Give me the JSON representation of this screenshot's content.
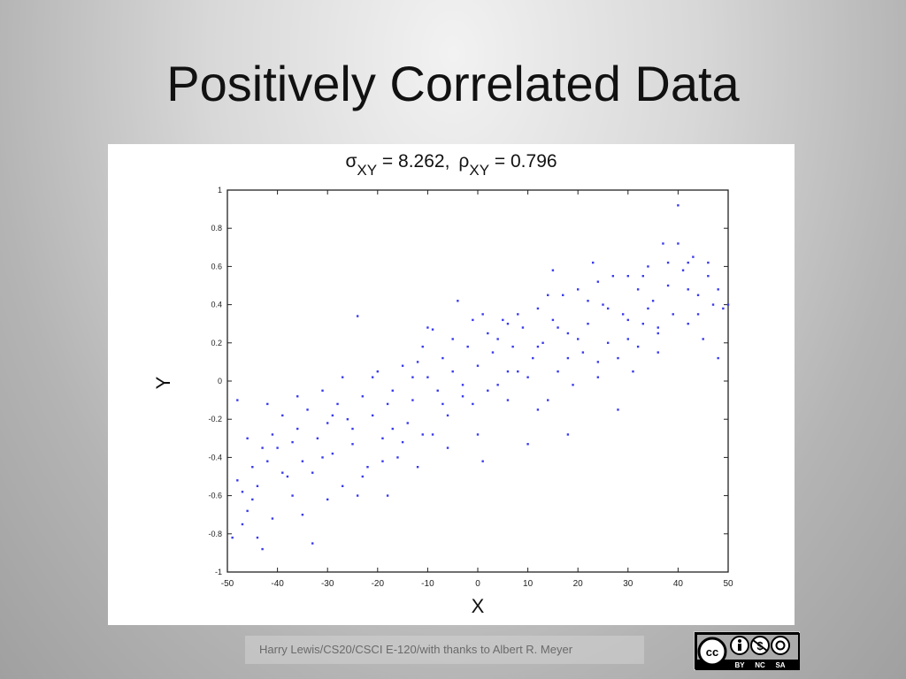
{
  "slide": {
    "title": "Positively Correlated Data",
    "footer": "Harry Lewis/CS20/CSCI E-120/with thanks to Albert R. Meyer"
  },
  "license_badge": {
    "icons": [
      "cc-icon",
      "by-icon",
      "nc-icon",
      "sa-icon"
    ],
    "labels": [
      "BY",
      "NC",
      "SA"
    ]
  },
  "chart_data": {
    "type": "scatter",
    "title_parts": {
      "sigma": "σ",
      "sigma_sub": "XY",
      "sigma_val": " = 8.262,",
      "rho": "ρ",
      "rho_sub": "XY",
      "rho_val": " = 0.796"
    },
    "xlabel": "X",
    "ylabel": "Y",
    "xlim": [
      -50,
      50
    ],
    "ylim": [
      -1,
      1
    ],
    "xticks": [
      -50,
      -40,
      -30,
      -20,
      -10,
      0,
      10,
      20,
      30,
      40,
      50
    ],
    "yticks": [
      -1,
      -0.8,
      -0.6,
      -0.4,
      -0.2,
      0,
      0.2,
      0.4,
      0.6,
      0.8,
      1
    ],
    "ytick_labels": [
      "-1",
      "-0.8",
      "-0.6",
      "-0.4",
      "-0.2",
      "0",
      "0.2",
      "0.4",
      "0.6",
      "0.8",
      "1"
    ],
    "grid": false,
    "marker_color": "#3a3af0",
    "points": [
      [
        -48,
        -0.52
      ],
      [
        -47,
        -0.58
      ],
      [
        -46,
        -0.68
      ],
      [
        -45,
        -0.45
      ],
      [
        -44,
        -0.82
      ],
      [
        -43,
        -0.88
      ],
      [
        -46,
        -0.3
      ],
      [
        -48,
        -0.1
      ],
      [
        -42,
        -0.42
      ],
      [
        -41,
        -0.28
      ],
      [
        -44,
        -0.55
      ],
      [
        -39,
        -0.18
      ],
      [
        -40,
        -0.35
      ],
      [
        -38,
        -0.5
      ],
      [
        -37,
        -0.6
      ],
      [
        -36,
        -0.25
      ],
      [
        -35,
        -0.42
      ],
      [
        -34,
        -0.15
      ],
      [
        -33,
        -0.48
      ],
      [
        -32,
        -0.3
      ],
      [
        -31,
        -0.05
      ],
      [
        -30,
        -0.22
      ],
      [
        -29,
        -0.38
      ],
      [
        -28,
        -0.12
      ],
      [
        -27,
        -0.55
      ],
      [
        -26,
        -0.2
      ],
      [
        -25,
        -0.33
      ],
      [
        -24,
        0.34
      ],
      [
        -23,
        -0.08
      ],
      [
        -22,
        -0.45
      ],
      [
        -21,
        -0.18
      ],
      [
        -20,
        0.05
      ],
      [
        -19,
        -0.3
      ],
      [
        -18,
        -0.6
      ],
      [
        -17,
        -0.05
      ],
      [
        -16,
        -0.4
      ],
      [
        -15,
        0.08
      ],
      [
        -14,
        -0.22
      ],
      [
        -13,
        -0.1
      ],
      [
        -12,
        0.1
      ],
      [
        -11,
        -0.28
      ],
      [
        -10,
        0.02
      ],
      [
        -9,
        0.27
      ],
      [
        -8,
        -0.05
      ],
      [
        -7,
        0.12
      ],
      [
        -6,
        -0.18
      ],
      [
        -5,
        0.05
      ],
      [
        -4,
        0.42
      ],
      [
        -3,
        -0.02
      ],
      [
        -2,
        0.18
      ],
      [
        -1,
        -0.12
      ],
      [
        0,
        0.08
      ],
      [
        1,
        -0.42
      ],
      [
        1,
        0.35
      ],
      [
        2,
        -0.05
      ],
      [
        3,
        0.15
      ],
      [
        4,
        0.22
      ],
      [
        5,
        0.32
      ],
      [
        6,
        -0.1
      ],
      [
        7,
        0.18
      ],
      [
        8,
        0.05
      ],
      [
        9,
        0.28
      ],
      [
        10,
        -0.33
      ],
      [
        11,
        0.12
      ],
      [
        12,
        0.38
      ],
      [
        13,
        0.2
      ],
      [
        14,
        -0.1
      ],
      [
        15,
        0.32
      ],
      [
        16,
        0.05
      ],
      [
        17,
        0.45
      ],
      [
        18,
        0.25
      ],
      [
        19,
        -0.02
      ],
      [
        20,
        0.48
      ],
      [
        21,
        0.15
      ],
      [
        22,
        0.3
      ],
      [
        23,
        0.62
      ],
      [
        24,
        0.1
      ],
      [
        25,
        0.4
      ],
      [
        26,
        0.2
      ],
      [
        27,
        0.55
      ],
      [
        28,
        -0.15
      ],
      [
        29,
        0.35
      ],
      [
        30,
        0.22
      ],
      [
        31,
        0.05
      ],
      [
        32,
        0.48
      ],
      [
        33,
        0.3
      ],
      [
        34,
        0.6
      ],
      [
        35,
        0.42
      ],
      [
        36,
        0.25
      ],
      [
        37,
        0.72
      ],
      [
        38,
        0.5
      ],
      [
        39,
        0.35
      ],
      [
        40,
        0.92
      ],
      [
        41,
        0.58
      ],
      [
        42,
        0.3
      ],
      [
        43,
        0.65
      ],
      [
        44,
        0.45
      ],
      [
        45,
        0.22
      ],
      [
        46,
        0.55
      ],
      [
        47,
        0.4
      ],
      [
        48,
        0.48
      ],
      [
        49,
        0.38
      ],
      [
        50,
        0.4
      ],
      [
        -47,
        -0.75
      ],
      [
        -45,
        -0.62
      ],
      [
        -43,
        -0.35
      ],
      [
        -41,
        -0.72
      ],
      [
        -39,
        -0.48
      ],
      [
        -37,
        -0.32
      ],
      [
        -35,
        -0.7
      ],
      [
        -33,
        -0.85
      ],
      [
        -31,
        -0.4
      ],
      [
        -29,
        -0.18
      ],
      [
        -27,
        0.02
      ],
      [
        -25,
        -0.25
      ],
      [
        -23,
        -0.5
      ],
      [
        -21,
        0.02
      ],
      [
        -19,
        -0.42
      ],
      [
        -17,
        -0.25
      ],
      [
        -15,
        -0.32
      ],
      [
        -13,
        0.02
      ],
      [
        -11,
        0.18
      ],
      [
        -9,
        -0.28
      ],
      [
        -7,
        -0.12
      ],
      [
        -5,
        0.22
      ],
      [
        -3,
        -0.08
      ],
      [
        -1,
        0.32
      ],
      [
        2,
        0.25
      ],
      [
        4,
        -0.02
      ],
      [
        6,
        0.05
      ],
      [
        8,
        0.35
      ],
      [
        10,
        0.02
      ],
      [
        12,
        0.18
      ],
      [
        14,
        0.45
      ],
      [
        16,
        0.28
      ],
      [
        18,
        0.12
      ],
      [
        20,
        0.22
      ],
      [
        22,
        0.42
      ],
      [
        24,
        0.52
      ],
      [
        26,
        0.38
      ],
      [
        28,
        0.12
      ],
      [
        30,
        0.55
      ],
      [
        32,
        0.18
      ],
      [
        34,
        0.38
      ],
      [
        36,
        0.28
      ],
      [
        38,
        0.62
      ],
      [
        40,
        0.72
      ],
      [
        42,
        0.48
      ],
      [
        44,
        0.35
      ],
      [
        46,
        0.62
      ],
      [
        -49,
        -0.82
      ],
      [
        -36,
        -0.08
      ],
      [
        -24,
        -0.6
      ],
      [
        -12,
        -0.45
      ],
      [
        0,
        -0.28
      ],
      [
        12,
        -0.15
      ],
      [
        24,
        0.02
      ],
      [
        36,
        0.15
      ],
      [
        48,
        0.12
      ],
      [
        -30,
        -0.62
      ],
      [
        -18,
        -0.12
      ],
      [
        -6,
        -0.35
      ],
      [
        6,
        0.3
      ],
      [
        18,
        -0.28
      ],
      [
        30,
        0.32
      ],
      [
        42,
        0.62
      ],
      [
        -42,
        -0.12
      ],
      [
        -10,
        0.28
      ],
      [
        15,
        0.58
      ],
      [
        33,
        0.55
      ]
    ]
  }
}
